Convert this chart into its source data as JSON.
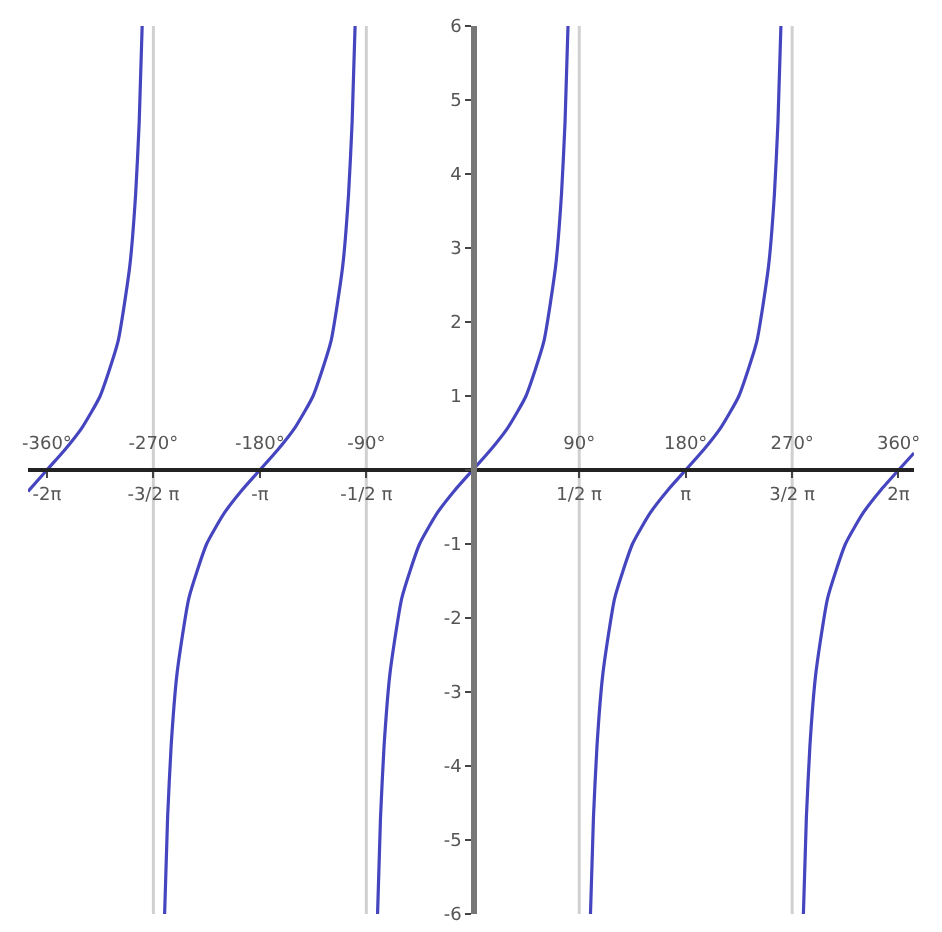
{
  "chart_data": {
    "type": "line",
    "series": [
      {
        "color": "#4545c0",
        "x": [
          -376,
          -360,
          -345,
          -330,
          -315,
          -300,
          -290,
          -285,
          -282,
          -279.5,
          -270,
          -260.5,
          -258,
          -255,
          -250,
          -240,
          -225,
          -210,
          -195,
          -180,
          -165,
          -150,
          -135,
          -120,
          -110,
          -105,
          -102,
          -99.5,
          -90,
          -80.5,
          -78,
          -75,
          -70,
          -60,
          -45,
          -30,
          -15,
          0,
          15,
          30,
          45,
          60,
          70,
          75,
          78,
          80.5,
          90,
          99.5,
          102,
          105,
          110,
          120,
          135,
          150,
          165,
          180,
          195,
          210,
          225,
          240,
          250,
          255,
          258,
          260.5,
          270,
          279.5,
          282,
          285,
          290,
          300,
          315,
          330,
          345,
          360,
          373
        ],
        "values": [
          -0.29,
          0,
          0.27,
          0.58,
          1,
          1.73,
          2.75,
          3.73,
          4.7,
          6,
          null,
          -6,
          -4.7,
          -3.73,
          -2.75,
          -1.73,
          -1,
          -0.58,
          -0.27,
          0,
          0.27,
          0.58,
          1,
          1.73,
          2.75,
          3.73,
          4.7,
          6,
          null,
          -6,
          -4.7,
          -3.73,
          -2.75,
          -1.73,
          -1,
          -0.58,
          -0.27,
          0,
          0.27,
          0.58,
          1,
          1.73,
          2.75,
          3.73,
          4.7,
          6,
          null,
          -6,
          -4.7,
          -3.73,
          -2.75,
          -1.73,
          -1,
          -0.58,
          -0.27,
          0,
          0.27,
          0.58,
          1,
          1.73,
          2.75,
          3.73,
          4.7,
          6,
          null,
          -6,
          -4.7,
          -3.73,
          -2.75,
          -1.73,
          -1,
          -0.58,
          -0.27,
          0,
          0.23
        ]
      }
    ],
    "xlim": [
      -376,
      373
    ],
    "ylim": [
      -6,
      6
    ],
    "xticks": [
      {
        "value": -360,
        "label": "-360°"
      },
      {
        "value": -270,
        "label": "-270°"
      },
      {
        "value": -180,
        "label": "-180°"
      },
      {
        "value": -90,
        "label": "-90°"
      },
      {
        "value": 90,
        "label": "90°"
      },
      {
        "value": 180,
        "label": "180°"
      },
      {
        "value": 270,
        "label": "270°"
      },
      {
        "value": 360,
        "label": "360°"
      }
    ],
    "x2lim": [
      -6.56,
      6.51
    ],
    "x2ticks": [
      {
        "value": -6.28,
        "label": "-2π"
      },
      {
        "value": -4.71,
        "label": "-3/2 π"
      },
      {
        "value": -3.14,
        "label": "-π"
      },
      {
        "value": -1.57,
        "label": "-1/2 π"
      },
      {
        "value": 1.57,
        "label": "1/2 π"
      },
      {
        "value": 3.14,
        "label": "π"
      },
      {
        "value": 4.71,
        "label": "3/2 π"
      },
      {
        "value": 6.28,
        "label": "2π"
      }
    ],
    "yticks": [
      -6,
      -5,
      -4,
      -3,
      -2,
      -1,
      {
        "value": 0,
        "label": null
      },
      1,
      2,
      3,
      4,
      5,
      6
    ],
    "ref_lines": [
      {
        "axis": "x",
        "value": -270,
        "color": "#d0d0d0"
      },
      {
        "axis": "x",
        "value": -90,
        "color": "#d0d0d0"
      },
      {
        "axis": "x",
        "value": 90,
        "color": "#d0d0d0"
      },
      {
        "axis": "x",
        "value": 270,
        "color": "#d0d0d0"
      }
    ]
  }
}
